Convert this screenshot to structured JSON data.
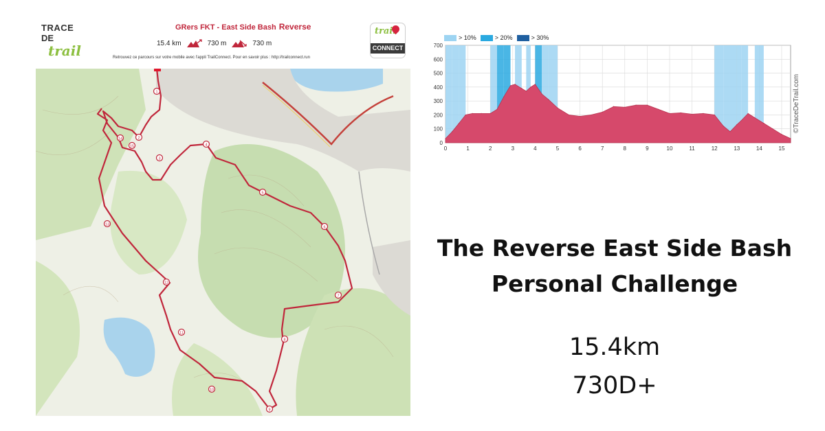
{
  "map_header": {
    "logo_line1": "TRACE",
    "logo_line2": "DE",
    "logo_line3": "trail",
    "route_title": "GRers FKT - East Side Bash",
    "route_title_suffix": "Reverse",
    "distance_stat": "15.4 km",
    "ascent_stat": "730 m",
    "descent_stat": "730 m",
    "promo_text": "Retrouvez ce parcours sur votre mobile avec l'appli TrailConnect. Pour en savoir plus : http://trailconnect.run",
    "connect_logo_top": "trail",
    "connect_logo_bottom": "CONNECT"
  },
  "map": {
    "route_color": "#c0263b",
    "km_markers": [
      "1",
      "2",
      "3",
      "4",
      "5",
      "6",
      "7",
      "8",
      "9",
      "10",
      "11",
      "12",
      "13",
      "14",
      "15"
    ]
  },
  "profile": {
    "legend": [
      {
        "label": "> 10%",
        "color": "#9dd4f2"
      },
      {
        "label": "> 20%",
        "color": "#2aa9e0"
      },
      {
        "label": "> 30%",
        "color": "#1f5fa0"
      }
    ],
    "watermark": "©TraceDeTrail.com",
    "fill_color": "#d6496b"
  },
  "chart_data": {
    "type": "area",
    "x": [
      0,
      0.3,
      0.6,
      0.9,
      1.2,
      1.6,
      2.0,
      2.3,
      2.6,
      2.9,
      3.1,
      3.4,
      3.6,
      3.8,
      4.0,
      4.3,
      4.6,
      5.0,
      5.5,
      6.0,
      6.5,
      7.0,
      7.5,
      8.0,
      8.5,
      9.0,
      9.5,
      10.0,
      10.5,
      11.0,
      11.5,
      12.0,
      12.4,
      12.7,
      13.0,
      13.2,
      13.5,
      13.8,
      14.2,
      14.6,
      15.0,
      15.4
    ],
    "y": [
      30,
      80,
      140,
      200,
      210,
      210,
      210,
      240,
      330,
      410,
      420,
      390,
      370,
      400,
      420,
      350,
      310,
      250,
      200,
      190,
      200,
      220,
      260,
      255,
      270,
      270,
      240,
      210,
      215,
      205,
      210,
      200,
      120,
      80,
      130,
      160,
      210,
      180,
      140,
      100,
      60,
      30
    ],
    "xlim": [
      0,
      15.4
    ],
    "ylim": [
      0,
      700
    ],
    "x_ticks": [
      "0",
      "1",
      "2",
      "3",
      "4",
      "5",
      "6",
      "7",
      "8",
      "9",
      "10",
      "11",
      "12",
      "13",
      "14",
      "15"
    ],
    "y_ticks": [
      "0",
      "100",
      "200",
      "300",
      "400",
      "500",
      "600",
      "700"
    ],
    "grid": true,
    "legend_position": "top-left"
  },
  "headline": {
    "line1": "The Reverse East Side Bash",
    "line2": "Personal Challenge"
  },
  "summary": {
    "distance": "15.4km",
    "elevation": "730D+"
  }
}
